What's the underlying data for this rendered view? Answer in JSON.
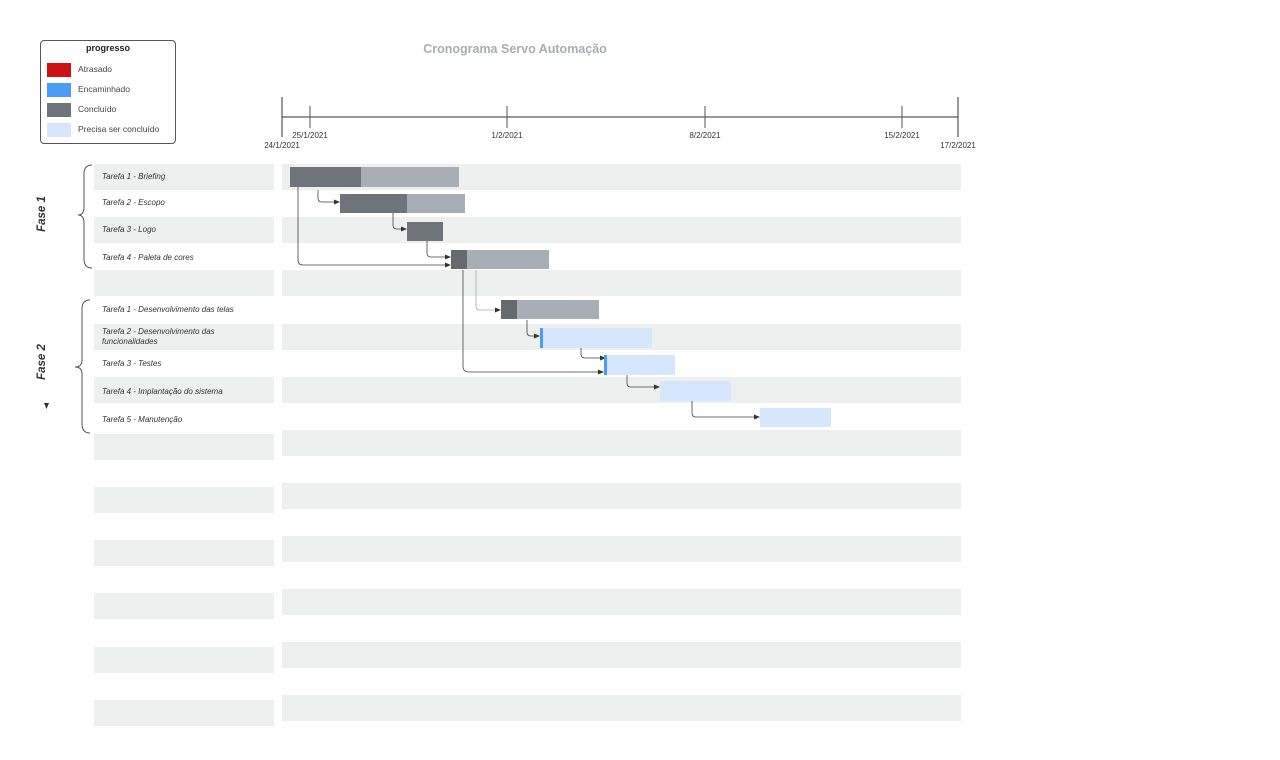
{
  "title": "Cronograma Servo Automação",
  "legend": {
    "title": "progresso",
    "items": [
      {
        "label": "Atrasado",
        "color": "#cc1111"
      },
      {
        "label": "Encaminhado",
        "color": "#4a9cf7"
      },
      {
        "label": "Concluído",
        "color": "#6f737a"
      },
      {
        "label": "Precisa ser concluído",
        "color": "#d6e6fc"
      }
    ]
  },
  "timeline": {
    "ticks": [
      {
        "label": "24/1/2021"
      },
      {
        "label": "25/1/2021"
      },
      {
        "label": "1/2/2021"
      },
      {
        "label": "8/2/2021"
      },
      {
        "label": "15/2/2021"
      },
      {
        "label": "17/2/2021"
      }
    ]
  },
  "phases": [
    {
      "label": "Fase 1",
      "tasks": [
        {
          "label": "Tarefa 1 - Briefing"
        },
        {
          "label": "Tarefa 2 - Escopo"
        },
        {
          "label": "Tarefa 3 - Logo"
        },
        {
          "label": "Tarefa 4 -  Paleta de cores"
        }
      ]
    },
    {
      "label": "Fase 2",
      "tasks": [
        {
          "label": "Tarefa 1  - Desenvolvimento das telas"
        },
        {
          "label": "Tarefa 2 - Desenvolvimento das funcionalidades"
        },
        {
          "label": "Tarefa 3 - Testes"
        },
        {
          "label": "Tarefa 4 - Implantação do sistema"
        },
        {
          "label": "Tarefa 5 -  Manutenção"
        }
      ]
    }
  ],
  "colors": {
    "done": "#6f737a",
    "done_dark": "#666a6f",
    "remaining": "#a8adb6",
    "todo": "#d6e6fc",
    "in_progress": "#4a9cf7",
    "row": "#eeefef"
  }
}
